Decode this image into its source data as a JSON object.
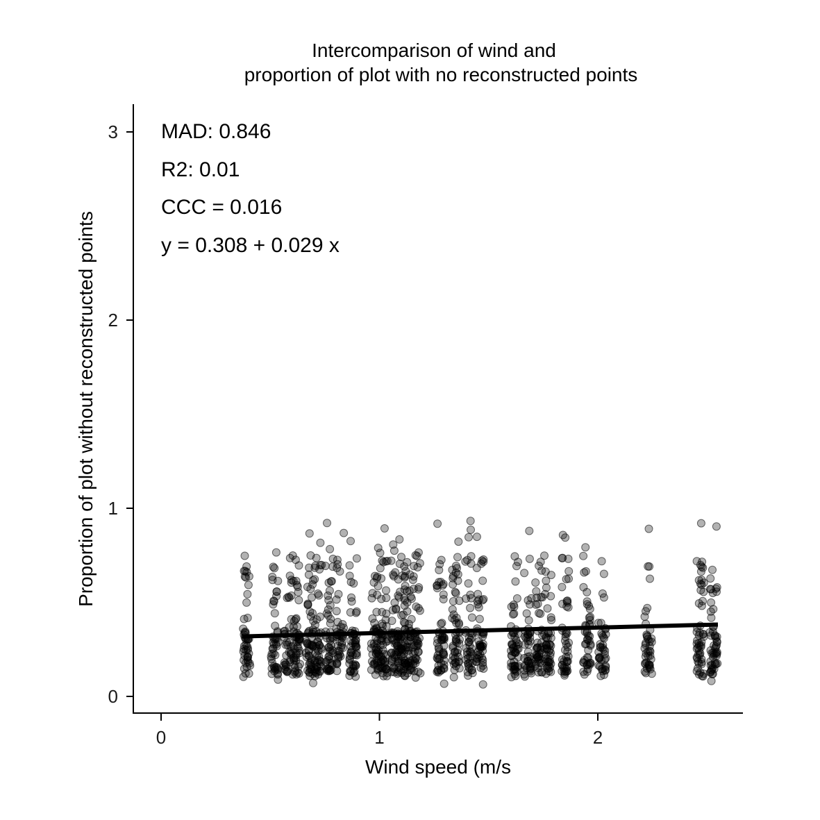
{
  "chart_data": {
    "type": "scatter",
    "title_lines": [
      "Intercomparison of wind and",
      "proportion of plot with no reconstructed points"
    ],
    "xlabel": "Wind speed (m/s",
    "ylabel": "Proportion of plot without reconstructed points",
    "xlim": [
      -0.13,
      2.67
    ],
    "ylim": [
      -0.08,
      3.15
    ],
    "x_ticks": [
      0,
      1,
      2
    ],
    "y_ticks": [
      0,
      1,
      2,
      3
    ],
    "grid": false,
    "legend": "none",
    "point_color": "#000000",
    "point_fill_opacity": 0.3,
    "line_color": "#000000",
    "annotations": [
      "MAD: 0.846",
      "R2: 0.01",
      "CCC =  0.016",
      "y =  0.308 + 0.029 x"
    ],
    "fit_line": {
      "intercept": 0.308,
      "slope": 0.029,
      "x_range": [
        0.37,
        2.55
      ]
    },
    "x_clusters": [
      0.39,
      0.52,
      0.58,
      0.62,
      0.68,
      0.72,
      0.77,
      0.82,
      0.88,
      0.98,
      1.02,
      1.07,
      1.1,
      1.13,
      1.17,
      1.28,
      1.35,
      1.41,
      1.46,
      1.62,
      1.68,
      1.73,
      1.77,
      1.85,
      1.95,
      2.02,
      2.23,
      2.47,
      2.53
    ],
    "y_distribution": {
      "min": 0.06,
      "max": 0.96,
      "typical_range": [
        0.1,
        0.75
      ],
      "dense_range": [
        0.12,
        0.35
      ]
    }
  }
}
